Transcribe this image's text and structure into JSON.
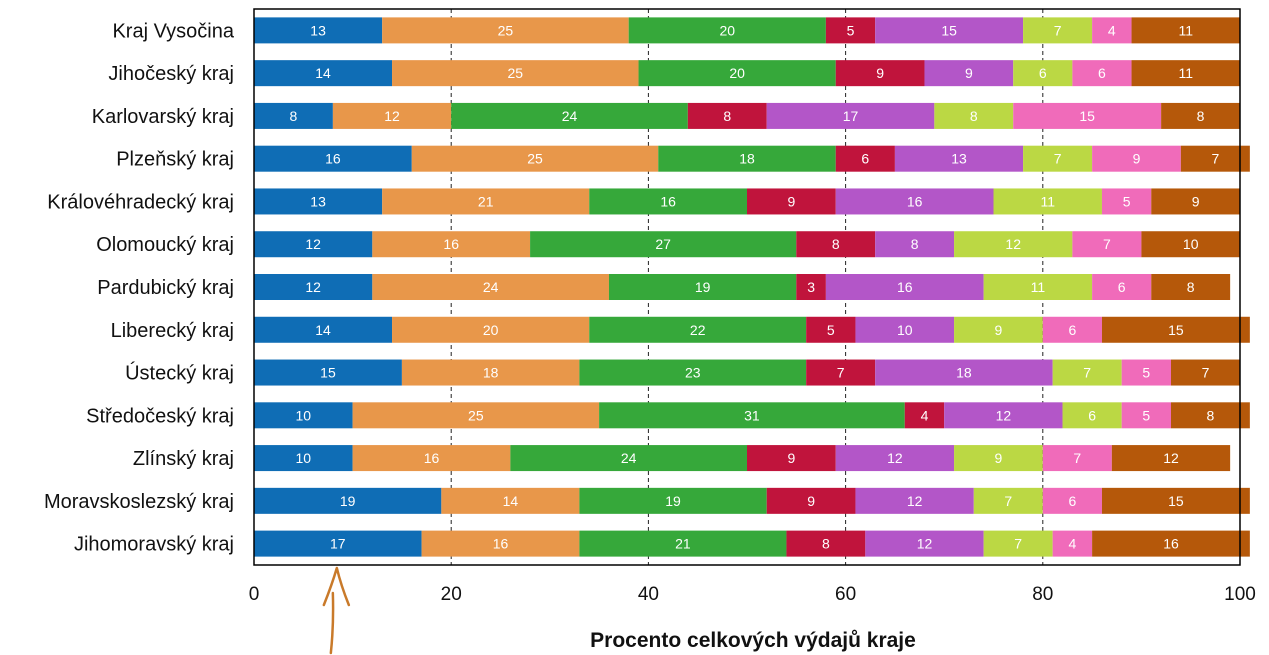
{
  "chart_data": {
    "type": "bar",
    "orientation": "horizontal",
    "stacked": true,
    "categories": [
      "Kraj Vysočina",
      "Jihočeský kraj",
      "Karlovarský kraj",
      "Plzeňský kraj",
      "Královéhradecký kraj",
      "Olomoucký kraj",
      "Pardubický kraj",
      "Liberecký kraj",
      "Ústecký kraj",
      "Středočeský kraj",
      "Zlínský kraj",
      "Moravskoslezský kraj",
      "Jihomoravský kraj"
    ],
    "series": [
      {
        "color": "#0f6db5",
        "values": [
          13,
          14,
          8,
          16,
          13,
          12,
          12,
          14,
          15,
          10,
          10,
          19,
          17
        ]
      },
      {
        "color": "#e8974a",
        "values": [
          25,
          25,
          12,
          25,
          21,
          16,
          24,
          20,
          18,
          25,
          16,
          14,
          16
        ]
      },
      {
        "color": "#36a83a",
        "values": [
          20,
          20,
          24,
          18,
          16,
          27,
          19,
          22,
          23,
          31,
          24,
          19,
          21
        ]
      },
      {
        "color": "#c0143c",
        "values": [
          5,
          9,
          8,
          6,
          9,
          8,
          3,
          5,
          7,
          4,
          9,
          9,
          8
        ]
      },
      {
        "color": "#b356c8",
        "values": [
          15,
          9,
          17,
          13,
          16,
          8,
          16,
          10,
          18,
          12,
          12,
          12,
          12
        ]
      },
      {
        "color": "#bbd844",
        "values": [
          7,
          6,
          8,
          7,
          11,
          12,
          11,
          9,
          7,
          6,
          9,
          7,
          7
        ]
      },
      {
        "color": "#f06bba",
        "values": [
          4,
          6,
          15,
          9,
          5,
          7,
          6,
          6,
          5,
          5,
          7,
          6,
          4
        ]
      },
      {
        "color": "#b5580a",
        "values": [
          11,
          11,
          8,
          7,
          9,
          10,
          8,
          15,
          7,
          8,
          12,
          15,
          16
        ]
      }
    ],
    "xlabel": "Procento celkových výdajů kraje",
    "ylabel": "",
    "xlim": [
      0,
      100
    ],
    "xticks": [
      0,
      20,
      40,
      60,
      80,
      100
    ],
    "grid": "vertical dashed",
    "legend": "none",
    "annotation": "hand-drawn arrow pointing up at the first series",
    "annotation_color": "#c97a2a"
  }
}
